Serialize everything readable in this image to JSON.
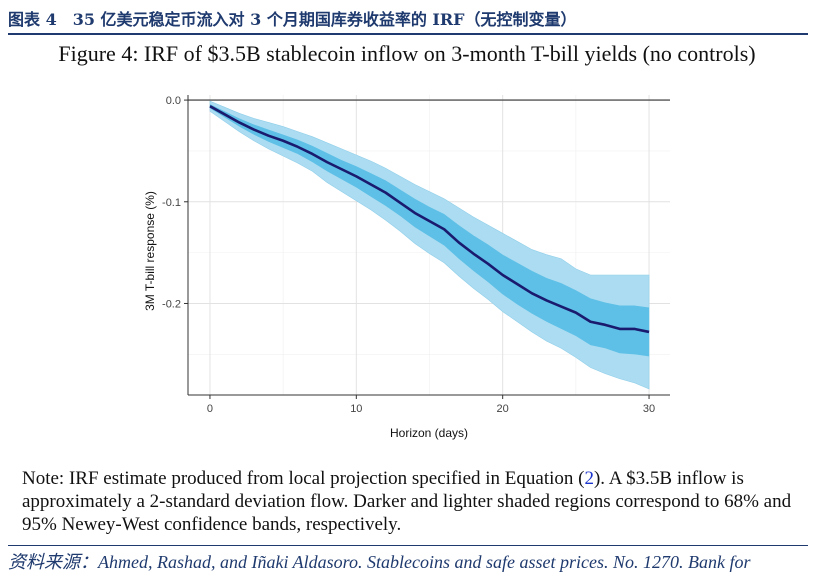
{
  "header": {
    "title": "图表 4　35 亿美元稳定币流入对 3 个月期国库券收益率的 IRF（无控制变量）"
  },
  "figure": {
    "caption": "Figure 4: IRF of $3.5B stablecoin inflow on 3-month T-bill yields (no controls)"
  },
  "chart_data": {
    "type": "line",
    "title": "",
    "xlabel": "Horizon (days)",
    "ylabel": "3M T-bill response (%)",
    "xlim": [
      -1.5,
      31.5
    ],
    "ylim": [
      -0.29,
      0.005
    ],
    "xticks": [
      0,
      10,
      20,
      30
    ],
    "xtick_labels": [
      "0",
      "10",
      "20",
      "30"
    ],
    "yticks": [
      0.0,
      -0.1,
      -0.2
    ],
    "ytick_labels": [
      "0.0",
      "-0.1",
      "-0.2"
    ],
    "grid": true,
    "zero_line": 0.0,
    "x": [
      0,
      1,
      2,
      3,
      4,
      5,
      6,
      7,
      8,
      9,
      10,
      11,
      12,
      13,
      14,
      15,
      16,
      17,
      18,
      19,
      20,
      21,
      22,
      23,
      24,
      25,
      26,
      27,
      28,
      29,
      30
    ],
    "series": [
      {
        "name": "IRF estimate",
        "color": "#1a1a6e",
        "values": [
          -0.006,
          -0.014,
          -0.022,
          -0.029,
          -0.035,
          -0.04,
          -0.046,
          -0.053,
          -0.061,
          -0.068,
          -0.075,
          -0.083,
          -0.091,
          -0.101,
          -0.111,
          -0.119,
          -0.127,
          -0.14,
          -0.151,
          -0.161,
          -0.172,
          -0.181,
          -0.19,
          -0.197,
          -0.203,
          -0.209,
          -0.218,
          -0.221,
          -0.225,
          -0.225,
          -0.228
        ]
      }
    ],
    "bands": [
      {
        "name": "95% Newey-West confidence band",
        "color": "#acdcf2",
        "upper": [
          -0.001,
          -0.007,
          -0.013,
          -0.018,
          -0.022,
          -0.026,
          -0.031,
          -0.036,
          -0.042,
          -0.048,
          -0.054,
          -0.06,
          -0.067,
          -0.075,
          -0.083,
          -0.09,
          -0.097,
          -0.106,
          -0.115,
          -0.123,
          -0.131,
          -0.139,
          -0.147,
          -0.152,
          -0.156,
          -0.166,
          -0.172,
          -0.172,
          -0.172,
          -0.172,
          -0.172
        ],
        "lower": [
          -0.011,
          -0.021,
          -0.031,
          -0.04,
          -0.048,
          -0.055,
          -0.062,
          -0.07,
          -0.081,
          -0.09,
          -0.099,
          -0.108,
          -0.118,
          -0.129,
          -0.141,
          -0.151,
          -0.16,
          -0.173,
          -0.185,
          -0.196,
          -0.208,
          -0.218,
          -0.228,
          -0.237,
          -0.244,
          -0.253,
          -0.263,
          -0.269,
          -0.274,
          -0.278,
          -0.284
        ]
      },
      {
        "name": "68% Newey-West confidence band",
        "color": "#5ec0e6",
        "upper": [
          -0.004,
          -0.011,
          -0.018,
          -0.024,
          -0.029,
          -0.034,
          -0.039,
          -0.045,
          -0.052,
          -0.059,
          -0.065,
          -0.072,
          -0.079,
          -0.088,
          -0.097,
          -0.105,
          -0.112,
          -0.123,
          -0.133,
          -0.142,
          -0.152,
          -0.16,
          -0.168,
          -0.175,
          -0.18,
          -0.187,
          -0.195,
          -0.199,
          -0.202,
          -0.202,
          -0.204
        ],
        "lower": [
          -0.008,
          -0.017,
          -0.026,
          -0.034,
          -0.041,
          -0.047,
          -0.053,
          -0.061,
          -0.07,
          -0.078,
          -0.086,
          -0.095,
          -0.104,
          -0.114,
          -0.125,
          -0.134,
          -0.143,
          -0.156,
          -0.168,
          -0.179,
          -0.191,
          -0.201,
          -0.21,
          -0.218,
          -0.225,
          -0.232,
          -0.241,
          -0.244,
          -0.249,
          -0.25,
          -0.252
        ]
      }
    ]
  },
  "note": {
    "prefix": "Note: IRF estimate produced from local projection specified in Equation (",
    "ref": "2",
    "suffix": "). A $3.5B inflow is approximately a 2-standard deviation flow. Darker and lighter shaded regions correspond to 68% and 95% Newey-West confidence bands, respectively."
  },
  "source": {
    "text": "资料来源：Ahmed, Rashad, and Iñaki Aldasoro. Stablecoins and safe asset prices. No. 1270. Bank for"
  },
  "colors": {
    "brand": "#1f3a6e",
    "line": "#1a1a6e",
    "band_68": "#5ec0e6",
    "band_95": "#acdcf2",
    "link": "#1a33cc"
  }
}
